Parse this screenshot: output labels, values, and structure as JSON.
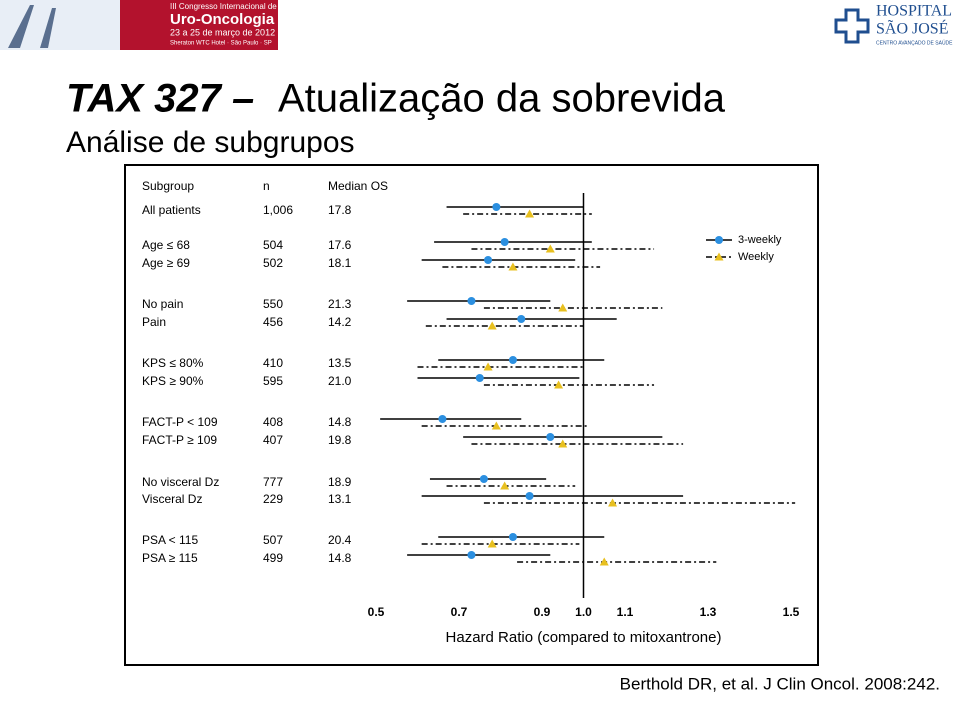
{
  "header": {
    "congress_line1": "III Congresso Internacional de",
    "congress_name": "Uro-Oncologia",
    "congress_dates": "23 a 25 de março de 2012",
    "congress_place": "Sheraton WTC Hotel · São Paulo · SP",
    "hospital_line1": "HOSPITAL",
    "hospital_line2": "SÃO JOSÉ",
    "hospital_tagline": "CENTRO AVANÇADO DE SAÚDE"
  },
  "slide": {
    "title_bold": "TAX 327 –",
    "title": "Atualização da sobrevida",
    "subtitle": "Análise de subgrupos",
    "citation": "Berthold DR, et al. J Clin Oncol. 2008:242."
  },
  "chart_data": {
    "type": "forest",
    "x_label": "Hazard Ratio (compared to mitoxantrone)",
    "column_headers": [
      "Subgroup",
      "n",
      "Median OS"
    ],
    "categories": [
      "All patients",
      "Age ≤ 68",
      "Age ≥ 69",
      "No pain",
      "Pain",
      "KPS ≤ 80%",
      "KPS ≥ 90%",
      "FACT-P < 109",
      "FACT-P ≥ 109",
      "No visceral Dz",
      "Visceral Dz",
      "PSA < 115",
      "PSA ≥ 115"
    ],
    "n": [
      "1,006",
      "504",
      "502",
      "550",
      "456",
      "410",
      "595",
      "408",
      "407",
      "777",
      "229",
      "507",
      "499"
    ],
    "median_os": [
      "17.8",
      "17.6",
      "18.1",
      "21.3",
      "14.2",
      "13.5",
      "21.0",
      "14.8",
      "19.8",
      "18.9",
      "13.1",
      "20.4",
      "14.8"
    ],
    "series": [
      {
        "name": "3-weekly",
        "color": "#2b8fe0",
        "marker": "circle",
        "line_style": "solid",
        "values": [
          0.79,
          0.81,
          0.77,
          0.73,
          0.85,
          0.83,
          0.75,
          0.66,
          0.92,
          0.76,
          0.87,
          0.83,
          0.73
        ],
        "lower": [
          0.67,
          0.64,
          0.61,
          0.575,
          0.67,
          0.65,
          0.6,
          0.51,
          0.71,
          0.63,
          0.61,
          0.65,
          0.575
        ],
        "upper": [
          1.0,
          1.02,
          0.98,
          0.92,
          1.08,
          1.05,
          0.99,
          0.85,
          1.19,
          0.91,
          1.24,
          1.05,
          0.92
        ]
      },
      {
        "name": "Weekly",
        "color": "#e8c020",
        "marker": "triangle",
        "line_style": "dashdot",
        "values": [
          0.87,
          0.92,
          0.83,
          0.95,
          0.78,
          0.77,
          0.94,
          0.79,
          0.95,
          0.81,
          1.07,
          0.78,
          1.05
        ],
        "lower": [
          0.71,
          0.73,
          0.66,
          0.76,
          0.62,
          0.6,
          0.76,
          0.61,
          0.73,
          0.67,
          0.76,
          0.61,
          0.84
        ],
        "upper": [
          1.02,
          1.17,
          1.04,
          1.19,
          1.0,
          1.0,
          1.17,
          1.01,
          1.24,
          0.98,
          1.51,
          0.99,
          1.32
        ]
      }
    ],
    "reference": 1,
    "xlim": [
      0.5,
      1.5
    ],
    "xticks": [
      0.5,
      0.7,
      0.9,
      {
        "value": 1,
        "label": "1.0"
      },
      1.1,
      1.3,
      1.5
    ],
    "legend": "upper right"
  }
}
